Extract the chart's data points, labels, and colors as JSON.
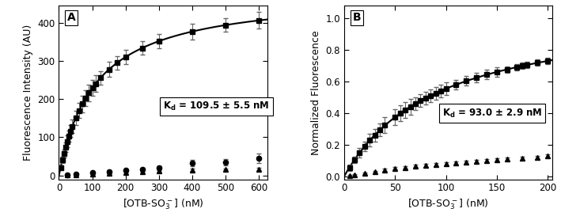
{
  "panel_A": {
    "label": "A",
    "xlabel": "[OTB-SO₃⁻] (nM)",
    "ylabel": "Fluorescence Intensity (AU)",
    "xlim": [
      0,
      625
    ],
    "ylim": [
      -10,
      445
    ],
    "xticks": [
      0,
      100,
      200,
      300,
      400,
      500,
      600
    ],
    "yticks": [
      0,
      100,
      200,
      300,
      400
    ],
    "Kd": 109.5,
    "Fmax": 480.0,
    "kd_text": "K$_\\mathregular{d}$ = 109.5 ± 5.5 nM",
    "squares_x": [
      5,
      10,
      15,
      20,
      25,
      30,
      35,
      40,
      50,
      60,
      70,
      80,
      90,
      100,
      110,
      125,
      150,
      175,
      200,
      250,
      300,
      400,
      500,
      600
    ],
    "squares_yerr": [
      5,
      8,
      10,
      12,
      15,
      15,
      15,
      18,
      18,
      20,
      22,
      20,
      22,
      20,
      22,
      18,
      20,
      18,
      18,
      18,
      18,
      20,
      18,
      22
    ],
    "circles_x": [
      25,
      50,
      100,
      150,
      200,
      250,
      300,
      400,
      500,
      600
    ],
    "circles_y": [
      2,
      4,
      7,
      10,
      13,
      17,
      20,
      32,
      35,
      45
    ],
    "circles_yerr": [
      2,
      2,
      3,
      3,
      4,
      4,
      5,
      8,
      8,
      12
    ],
    "triangles_x": [
      25,
      50,
      100,
      150,
      200,
      250,
      300,
      400,
      500,
      600
    ],
    "triangles_y": [
      1,
      2,
      4,
      6,
      8,
      10,
      12,
      15,
      16,
      17
    ],
    "triangles_yerr": [
      1,
      1,
      2,
      2,
      2,
      2,
      3,
      3,
      3,
      4
    ]
  },
  "panel_B": {
    "label": "B",
    "xlabel": "[OTB-SO₃⁻] (nM)",
    "ylabel": "Normalized Fluorescence",
    "xlim": [
      0,
      205
    ],
    "ylim": [
      -0.02,
      1.08
    ],
    "xticks": [
      0,
      50,
      100,
      150,
      200
    ],
    "yticks": [
      0.0,
      0.2,
      0.4,
      0.6,
      0.8,
      1.0
    ],
    "Kd": 93.0,
    "Fmax": 1.068,
    "kd_text": "K$_\\mathregular{d}$ = 93.0 ± 2.9 nM",
    "squares_x": [
      5,
      10,
      15,
      20,
      25,
      30,
      35,
      40,
      50,
      55,
      60,
      65,
      70,
      75,
      80,
      85,
      90,
      95,
      100,
      110,
      120,
      130,
      140,
      150,
      160,
      170,
      175,
      180,
      190,
      200
    ],
    "squares_yerr": [
      0.02,
      0.02,
      0.03,
      0.03,
      0.04,
      0.04,
      0.04,
      0.05,
      0.05,
      0.05,
      0.05,
      0.05,
      0.04,
      0.04,
      0.04,
      0.04,
      0.04,
      0.04,
      0.04,
      0.03,
      0.03,
      0.03,
      0.03,
      0.03,
      0.02,
      0.02,
      0.02,
      0.02,
      0.02,
      0.02
    ],
    "triangles_x": [
      5,
      10,
      20,
      30,
      40,
      50,
      60,
      70,
      80,
      90,
      100,
      110,
      120,
      130,
      140,
      150,
      160,
      175,
      190,
      200
    ],
    "triangles_y": [
      0.005,
      0.01,
      0.02,
      0.03,
      0.04,
      0.05,
      0.055,
      0.065,
      0.07,
      0.075,
      0.08,
      0.085,
      0.09,
      0.095,
      0.1,
      0.105,
      0.11,
      0.115,
      0.12,
      0.13
    ],
    "triangles_yerr": [
      0.005,
      0.005,
      0.005,
      0.005,
      0.008,
      0.008,
      0.008,
      0.008,
      0.01,
      0.01,
      0.01,
      0.01,
      0.01,
      0.01,
      0.01,
      0.01,
      0.01,
      0.01,
      0.01,
      0.01
    ]
  },
  "color": "#000000",
  "bg_color": "#ffffff",
  "marker_size": 4.5,
  "capsize": 2,
  "elinewidth": 0.8,
  "linewidth": 1.5
}
